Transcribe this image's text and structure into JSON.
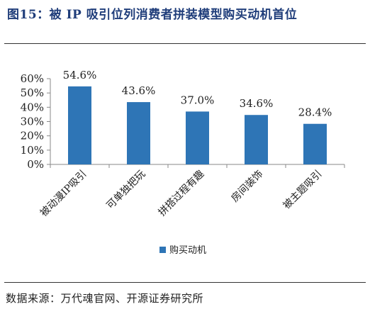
{
  "title": "图15：被 IP 吸引位列消费者拼装模型购买动机首位",
  "source": "数据来源：万代魂官网、开源证券研究所",
  "colors": {
    "bar": "#2e75b6",
    "axis": "#888888"
  },
  "chart_data": {
    "type": "bar",
    "categories": [
      "被动漫IP吸引",
      "可单独把玩",
      "拼搭过程有趣",
      "房间装饰",
      "被主题吸引"
    ],
    "series": [
      {
        "name": "购买动机",
        "values": [
          54.6,
          43.6,
          37.0,
          34.6,
          28.4
        ]
      }
    ],
    "data_labels": [
      "54.6%",
      "43.6%",
      "37.0%",
      "34.6%",
      "28.4%"
    ],
    "yticks": [
      "0%",
      "10%",
      "20%",
      "30%",
      "40%",
      "50%",
      "60%"
    ],
    "ylim": [
      0,
      60
    ],
    "legend": "bottom",
    "grid": false
  }
}
